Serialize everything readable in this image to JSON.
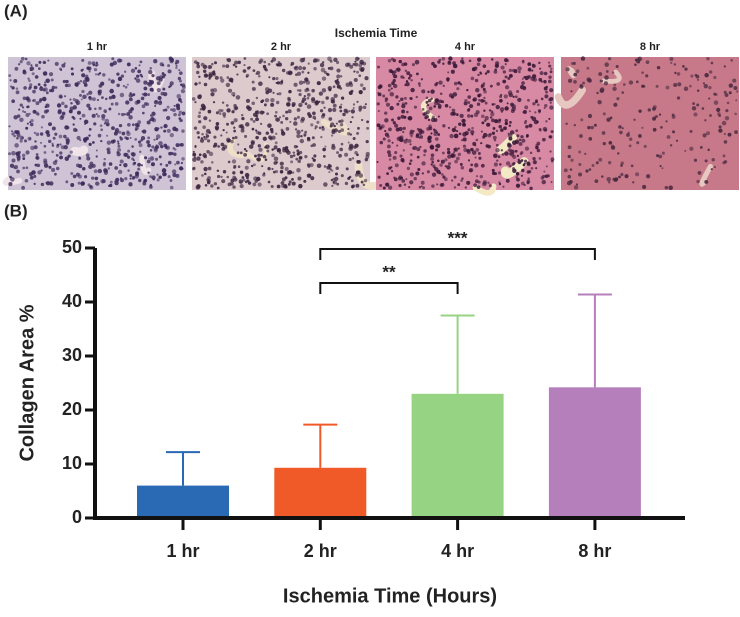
{
  "panel_a": {
    "label": "(A)",
    "title": "Ischemia Time",
    "images": [
      "1 hr",
      "2 hr",
      "4 hr",
      "8 hr"
    ]
  },
  "panel_b": {
    "label": "(B)"
  },
  "chart_data": {
    "type": "bar",
    "categories": [
      "1 hr",
      "2 hr",
      "4 hr",
      "8 hr"
    ],
    "values": [
      6,
      9.3,
      23,
      24.2
    ],
    "errors": [
      6.2,
      8,
      14.5,
      17.2
    ],
    "colors": [
      "#2a6ab5",
      "#f05a28",
      "#96d383",
      "#b57fbc"
    ],
    "ylim": [
      0,
      50
    ],
    "yticks": [
      0,
      10,
      20,
      30,
      40,
      50
    ],
    "y_label": "Collagen Area %",
    "x_label": "Ischemia Time (Hours)",
    "significance": [
      {
        "text": "**",
        "between": [
          "2 hr",
          "4 hr"
        ]
      },
      {
        "text": "***",
        "between": [
          "2 hr",
          "8 hr"
        ]
      }
    ]
  }
}
